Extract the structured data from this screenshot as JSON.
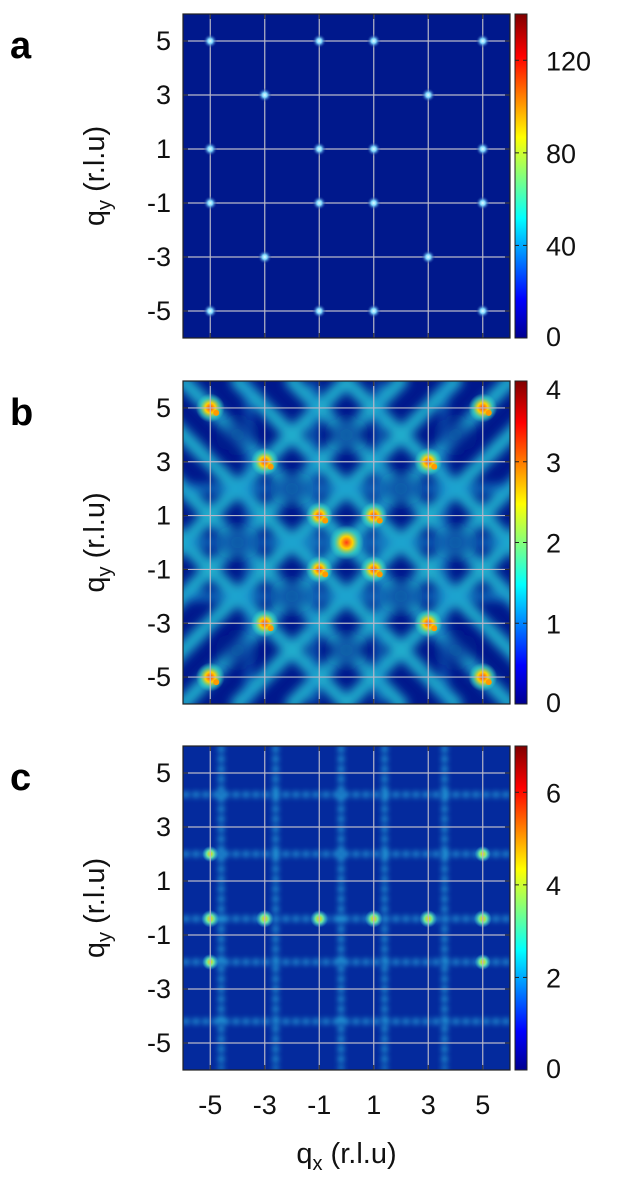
{
  "chart_data": [
    {
      "type": "heatmap",
      "panel_label": "a",
      "ylabel": "q",
      "ylabel_sub": "y",
      "ylabel_unit": "(r.l.u)",
      "xlim": [
        -6,
        6
      ],
      "ylim": [
        -6,
        6
      ],
      "xticks": [
        -5,
        -3,
        -1,
        1,
        3,
        5
      ],
      "yticks": [
        5,
        3,
        1,
        -1,
        -3,
        -5
      ],
      "colorbar": {
        "min": 0,
        "max": 140,
        "ticks": [
          0,
          40,
          80,
          120
        ]
      },
      "grid": true,
      "peaks": [
        {
          "x": -5,
          "y": 5,
          "v": 60
        },
        {
          "x": -1,
          "y": 5,
          "v": 60
        },
        {
          "x": 1,
          "y": 5,
          "v": 60
        },
        {
          "x": 5,
          "y": 5,
          "v": 60
        },
        {
          "x": -3,
          "y": 3,
          "v": 60
        },
        {
          "x": 3,
          "y": 3,
          "v": 60
        },
        {
          "x": -5,
          "y": 1,
          "v": 60
        },
        {
          "x": -1,
          "y": 1,
          "v": 60
        },
        {
          "x": 1,
          "y": 1,
          "v": 60
        },
        {
          "x": 5,
          "y": 1,
          "v": 60
        },
        {
          "x": -5,
          "y": -1,
          "v": 60
        },
        {
          "x": -1,
          "y": -1,
          "v": 60
        },
        {
          "x": 1,
          "y": -1,
          "v": 60
        },
        {
          "x": 5,
          "y": -1,
          "v": 60
        },
        {
          "x": -3,
          "y": -3,
          "v": 60
        },
        {
          "x": 3,
          "y": -3,
          "v": 60
        },
        {
          "x": -5,
          "y": -5,
          "v": 60
        },
        {
          "x": -1,
          "y": -5,
          "v": 60
        },
        {
          "x": 1,
          "y": -5,
          "v": 60
        },
        {
          "x": 5,
          "y": -5,
          "v": 60
        }
      ]
    },
    {
      "type": "heatmap",
      "panel_label": "b",
      "ylabel": "q",
      "ylabel_sub": "y",
      "ylabel_unit": "(r.l.u)",
      "xlim": [
        -6,
        6
      ],
      "ylim": [
        -6,
        6
      ],
      "xticks": [
        -5,
        -3,
        -1,
        1,
        3,
        5
      ],
      "yticks": [
        5,
        3,
        1,
        -1,
        -3,
        -5
      ],
      "colorbar": {
        "min": 0,
        "max": 4,
        "ticks": [
          0,
          1,
          2,
          3,
          4
        ]
      },
      "grid": true,
      "pattern": "diffuse diagonal ridges connecting peaks",
      "peaks": [
        {
          "x": 0,
          "y": 0,
          "v": 3.8
        },
        {
          "x": -5,
          "y": 5,
          "v": 2.6
        },
        {
          "x": 5,
          "y": 5,
          "v": 2.6
        },
        {
          "x": -5,
          "y": -5,
          "v": 2.6
        },
        {
          "x": 5,
          "y": -5,
          "v": 2.6
        },
        {
          "x": -3,
          "y": 3,
          "v": 2.4
        },
        {
          "x": 3,
          "y": 3,
          "v": 2.4
        },
        {
          "x": -3,
          "y": -3,
          "v": 2.4
        },
        {
          "x": 3,
          "y": -3,
          "v": 2.4
        },
        {
          "x": -1,
          "y": 1,
          "v": 2.2
        },
        {
          "x": 1,
          "y": 1,
          "v": 2.2
        },
        {
          "x": -1,
          "y": -1,
          "v": 2.2
        },
        {
          "x": 1,
          "y": -1,
          "v": 2.2
        }
      ]
    },
    {
      "type": "heatmap",
      "panel_label": "c",
      "ylabel": "q",
      "ylabel_sub": "y",
      "ylabel_unit": "(r.l.u)",
      "xlabel": "q",
      "xlabel_sub": "x",
      "xlabel_unit": "(r.l.u)",
      "xlim": [
        -6,
        6
      ],
      "ylim": [
        -6,
        6
      ],
      "xticks": [
        -5,
        -3,
        -1,
        1,
        3,
        5
      ],
      "yticks": [
        5,
        3,
        1,
        -1,
        -3,
        -5
      ],
      "colorbar": {
        "min": 0,
        "max": 7,
        "ticks": [
          0,
          2,
          4,
          6
        ]
      },
      "grid": true,
      "pattern": "vertical and horizontal stripes",
      "vertical_lines": [
        -4.6,
        -2.6,
        -0.2,
        1.4,
        3.6
      ],
      "horizontal_lines": [
        4.2,
        2.0,
        -0.4,
        -2.0,
        -4.2
      ],
      "peaks": [
        {
          "x": -5,
          "y": -0.4,
          "v": 4.5
        },
        {
          "x": -3,
          "y": -0.4,
          "v": 4.5
        },
        {
          "x": -1,
          "y": -0.4,
          "v": 4.5
        },
        {
          "x": 1,
          "y": -0.4,
          "v": 4.5
        },
        {
          "x": 3,
          "y": -0.4,
          "v": 4.5
        },
        {
          "x": 5,
          "y": -0.4,
          "v": 4.5
        },
        {
          "x": -5,
          "y": 2,
          "v": 3.5
        },
        {
          "x": 5,
          "y": 2,
          "v": 3.5
        },
        {
          "x": -5,
          "y": -2,
          "v": 3.5
        },
        {
          "x": 5,
          "y": -2,
          "v": 3.5
        }
      ]
    }
  ],
  "colors": {
    "background": "#00188c",
    "grid": "#b8b8c8"
  }
}
